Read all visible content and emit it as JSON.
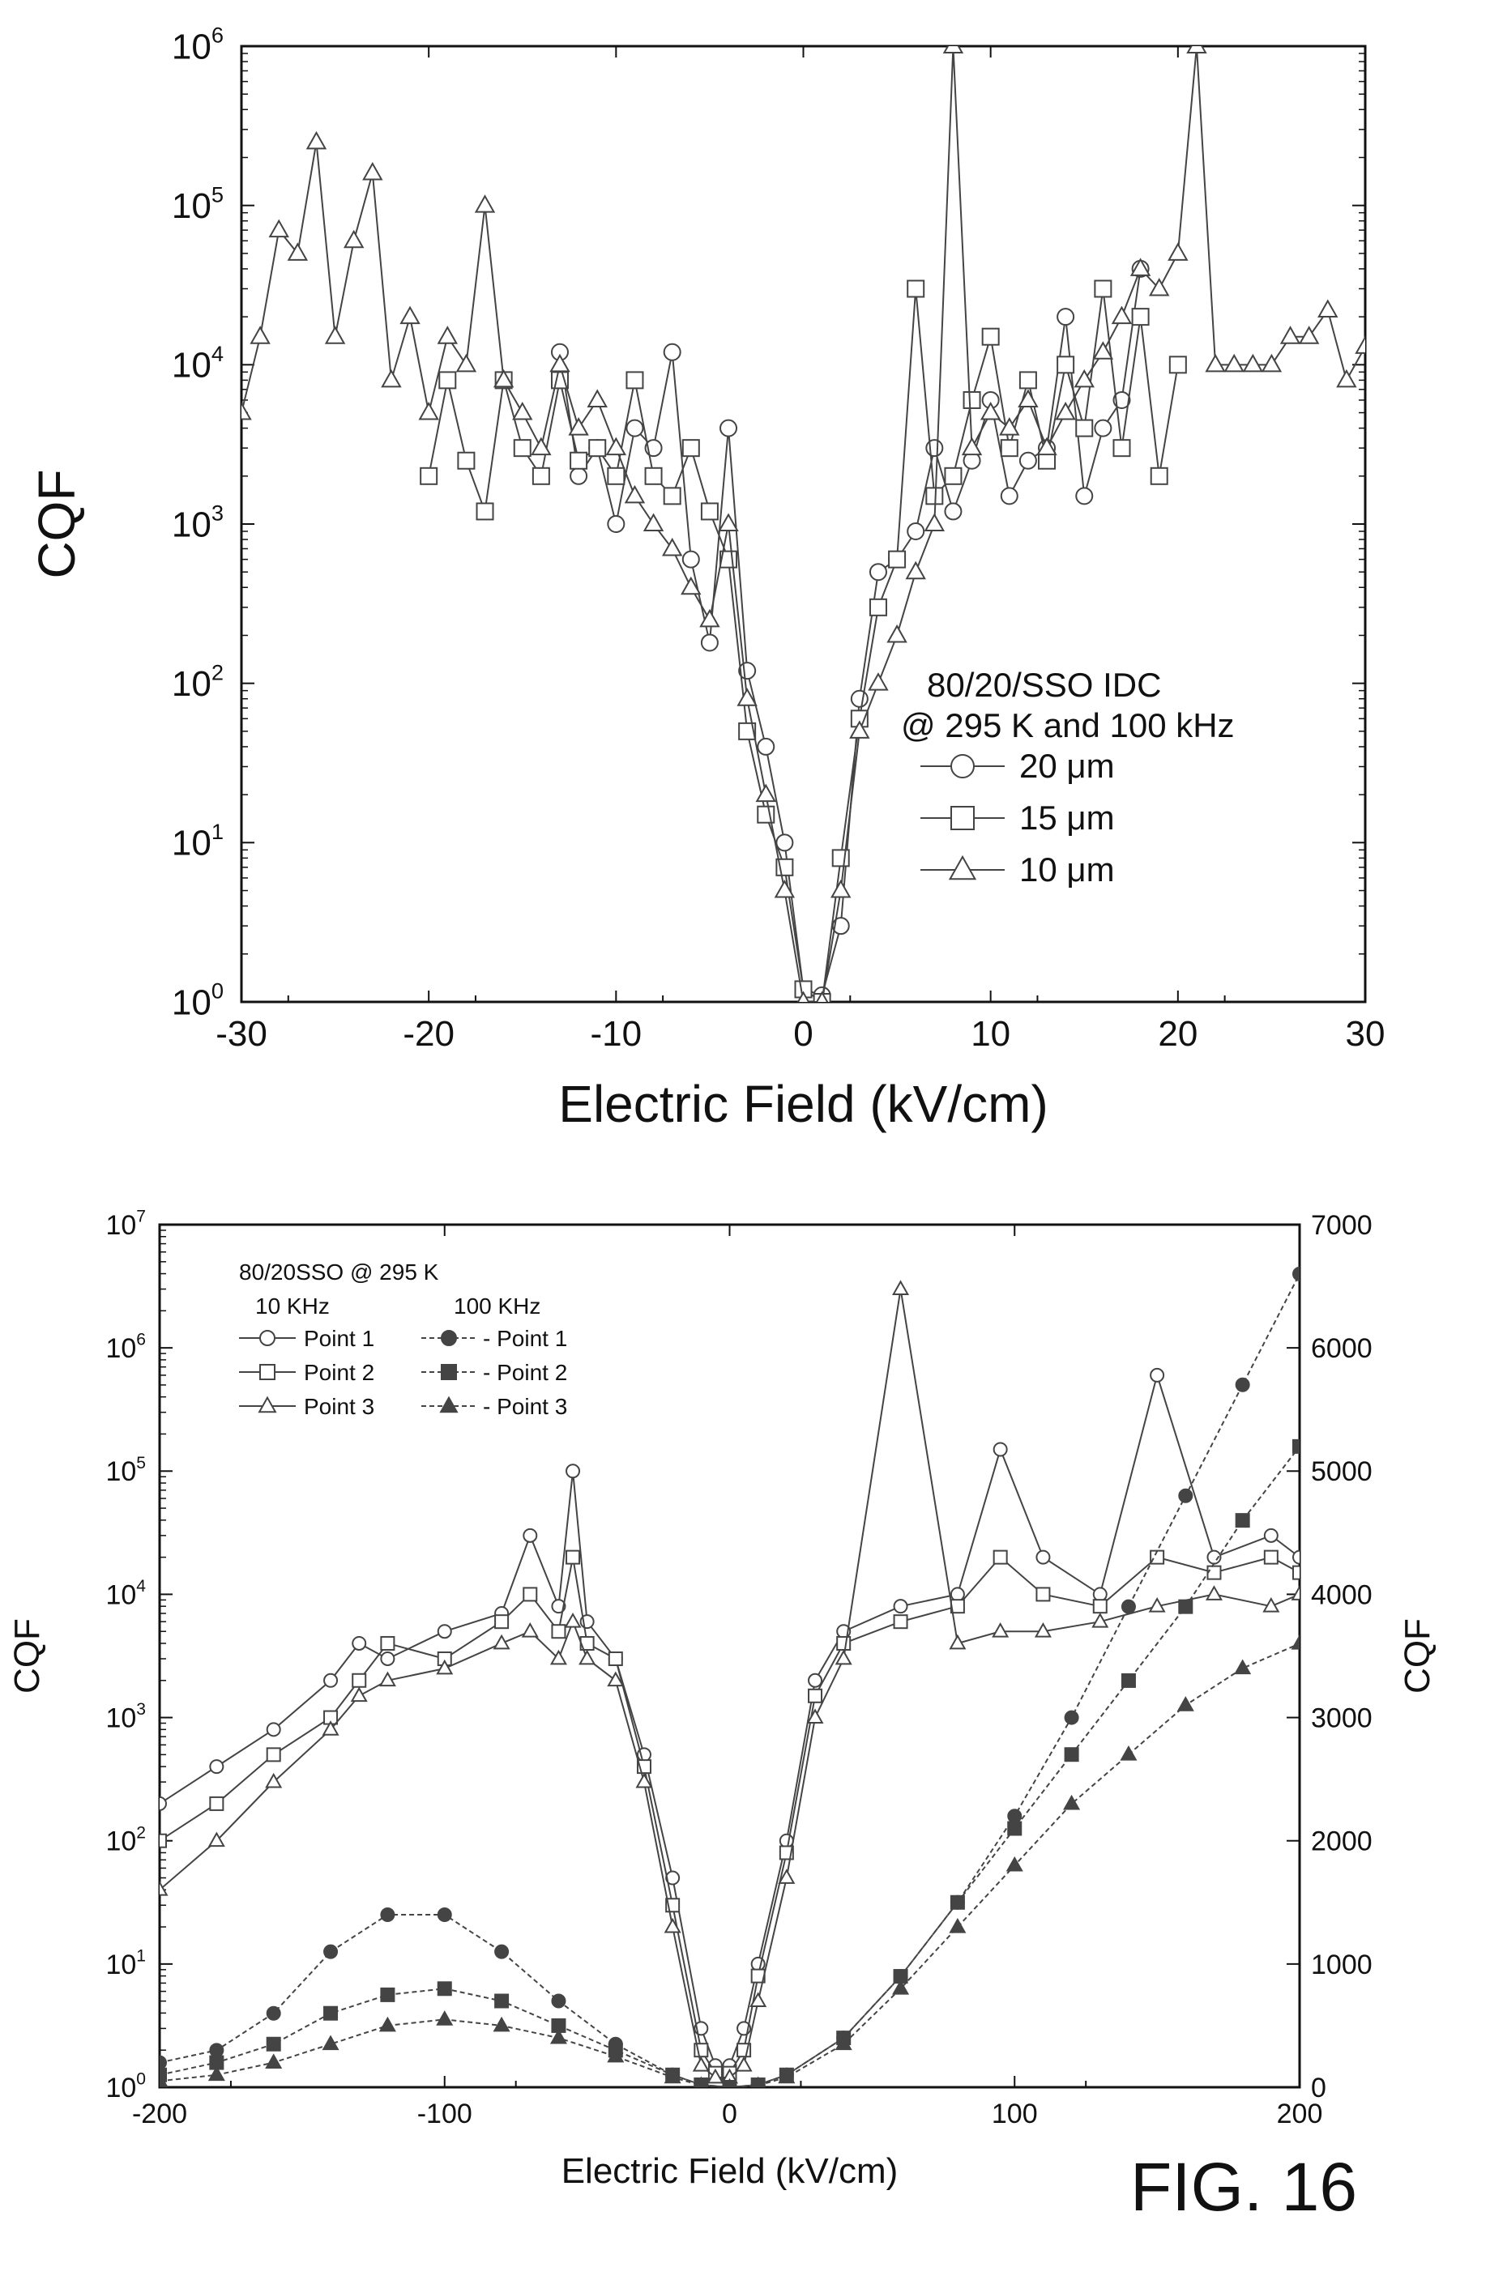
{
  "figure_label": "FIG. 16",
  "chart_data": [
    {
      "type": "line",
      "xlabel": "Electric Field (kV/cm)",
      "ylabel": "CQF",
      "xlim": [
        -30,
        30
      ],
      "ylim": [
        1,
        1000000
      ],
      "yscale": "log",
      "x_ticks": [
        "-30",
        "-20",
        "-10",
        "0",
        "10",
        "20",
        "30"
      ],
      "y_tick_exponents": [
        "0",
        "1",
        "2",
        "3",
        "4",
        "5",
        "6"
      ],
      "grid": false,
      "legend_position": "center-right",
      "legend_title": [
        "80/20/SSO IDC",
        "@ 295 K and 100 kHz"
      ],
      "series": [
        {
          "name": "20 μm",
          "marker": "circle",
          "x": [
            -13,
            -12,
            -11,
            -10,
            -9,
            -8,
            -7,
            -6,
            -5,
            -4,
            -3,
            -2,
            -1,
            0,
            1,
            2,
            3,
            4,
            5,
            6,
            7,
            8,
            9,
            10,
            11,
            12,
            13,
            14,
            15,
            16,
            17,
            18
          ],
          "y": [
            12000,
            2000,
            3000,
            1000,
            4000,
            3000,
            12000,
            600,
            180,
            4000,
            120,
            40,
            10,
            1.2,
            1.1,
            3,
            80,
            500,
            600,
            900,
            3000,
            1200,
            2500,
            6000,
            1500,
            2500,
            3000,
            20000,
            1500,
            4000,
            6000,
            40000
          ]
        },
        {
          "name": "15 μm",
          "marker": "square",
          "x": [
            -20,
            -19,
            -18,
            -17,
            -16,
            -15,
            -14,
            -13,
            -12,
            -11,
            -10,
            -9,
            -8,
            -7,
            -6,
            -5,
            -4,
            -3,
            -2,
            -1,
            0,
            1,
            2,
            3,
            4,
            5,
            6,
            7,
            8,
            9,
            10,
            11,
            12,
            13,
            14,
            15,
            16,
            17,
            18,
            19,
            20
          ],
          "y": [
            2000,
            8000,
            2500,
            1200,
            8000,
            3000,
            2000,
            8000,
            2500,
            3000,
            2000,
            8000,
            2000,
            1500,
            3000,
            1200,
            600,
            50,
            15,
            7,
            1.2,
            1,
            8,
            60,
            300,
            600,
            30000,
            1500,
            2000,
            6000,
            15000,
            3000,
            8000,
            2500,
            10000,
            4000,
            30000,
            3000,
            20000,
            2000,
            10000
          ]
        },
        {
          "name": "10 μm",
          "marker": "triangle",
          "x": [
            -30,
            -29,
            -28,
            -27,
            -26,
            -25,
            -24,
            -23,
            -22,
            -21,
            -20,
            -19,
            -18,
            -17,
            -16,
            -15,
            -14,
            -13,
            -12,
            -11,
            -10,
            -9,
            -8,
            -7,
            -6,
            -5,
            -4,
            -3,
            -2,
            -1,
            0,
            1,
            2,
            3,
            4,
            5,
            6,
            7,
            8,
            9,
            10,
            11,
            12,
            13,
            14,
            15,
            16,
            17,
            18,
            19,
            20,
            21,
            22,
            23,
            24,
            25,
            26,
            27,
            28,
            29,
            30
          ],
          "y": [
            5000,
            15000,
            70000,
            50000,
            250000,
            15000,
            60000,
            160000,
            8000,
            20000,
            5000,
            15000,
            10000,
            100000,
            8000,
            5000,
            3000,
            10000,
            4000,
            6000,
            3000,
            1500,
            1000,
            700,
            400,
            250,
            1000,
            80,
            20,
            5,
            1,
            1,
            5,
            50,
            100,
            200,
            500,
            1000,
            1000000,
            3000,
            5000,
            4000,
            6000,
            3000,
            5000,
            8000,
            12000,
            20000,
            40000,
            30000,
            50000,
            1000000,
            10000,
            10000,
            10000,
            10000,
            15000,
            15000,
            22000,
            8000,
            13000
          ]
        }
      ]
    },
    {
      "type": "line",
      "xlabel": "Electric Field (kV/cm)",
      "ylabel": "CQF",
      "y2label": "CQF",
      "xlim": [
        -200,
        200
      ],
      "ylim": [
        1,
        10000000
      ],
      "yscale": "log",
      "y2lim": [
        0,
        7000
      ],
      "x_ticks": [
        "-200",
        "-100",
        "0",
        "100",
        "200"
      ],
      "y_tick_exponents": [
        "0",
        "1",
        "2",
        "3",
        "4",
        "5",
        "6",
        "7"
      ],
      "y2_ticks": [
        "0",
        "1000",
        "2000",
        "3000",
        "4000",
        "5000",
        "6000",
        "7000"
      ],
      "grid": false,
      "legend_position": "top-left",
      "legend_title": "80/20SSO @ 295 K",
      "legend_columns": [
        "10 KHz",
        "100 KHz"
      ],
      "series": [
        {
          "name": "Point 1",
          "group": "10 KHz",
          "marker": "open-circle",
          "axis": "left",
          "x": [
            -200,
            -180,
            -160,
            -140,
            -130,
            -120,
            -100,
            -80,
            -70,
            -60,
            -55,
            -50,
            -40,
            -30,
            -20,
            -10,
            -5,
            0,
            5,
            10,
            20,
            30,
            40,
            60,
            80,
            95,
            110,
            130,
            150,
            170,
            190,
            200
          ],
          "y": [
            200,
            400,
            800,
            2000,
            4000,
            3000,
            5000,
            7000,
            30000,
            8000,
            100000,
            6000,
            3000,
            500,
            50,
            3,
            1.5,
            1.5,
            3,
            10,
            100,
            2000,
            5000,
            8000,
            10000,
            150000,
            20000,
            10000,
            600000,
            20000,
            30000,
            20000
          ]
        },
        {
          "name": "Point 2",
          "group": "10 KHz",
          "marker": "open-square",
          "axis": "left",
          "x": [
            -200,
            -180,
            -160,
            -140,
            -130,
            -120,
            -100,
            -80,
            -70,
            -60,
            -55,
            -50,
            -40,
            -30,
            -20,
            -10,
            -5,
            0,
            5,
            10,
            20,
            30,
            40,
            60,
            80,
            95,
            110,
            130,
            150,
            170,
            190,
            200
          ],
          "y": [
            100,
            200,
            500,
            1000,
            2000,
            4000,
            3000,
            6000,
            10000,
            5000,
            20000,
            4000,
            3000,
            400,
            30,
            2,
            1.3,
            1.3,
            2,
            8,
            80,
            1500,
            4000,
            6000,
            8000,
            20000,
            10000,
            8000,
            20000,
            15000,
            20000,
            15000
          ]
        },
        {
          "name": "Point 3",
          "group": "10 KHz",
          "marker": "open-triangle",
          "axis": "left",
          "x": [
            -200,
            -180,
            -160,
            -140,
            -130,
            -120,
            -100,
            -80,
            -70,
            -60,
            -55,
            -50,
            -40,
            -30,
            -20,
            -10,
            -5,
            0,
            5,
            10,
            20,
            30,
            40,
            60,
            80,
            95,
            110,
            130,
            150,
            170,
            190,
            200
          ],
          "y": [
            40,
            100,
            300,
            800,
            1500,
            2000,
            2500,
            4000,
            5000,
            3000,
            6000,
            3000,
            2000,
            300,
            20,
            1.5,
            1.2,
            1.2,
            1.5,
            5,
            50,
            1000,
            3000,
            3000000,
            4000,
            5000,
            5000,
            6000,
            8000,
            10000,
            8000,
            10000
          ]
        },
        {
          "name": "Point 1",
          "group": "100 KHz",
          "marker": "filled-circle",
          "axis": "right",
          "x": [
            -200,
            -180,
            -160,
            -140,
            -120,
            -100,
            -80,
            -60,
            -40,
            -20,
            -10,
            0,
            10,
            20,
            40,
            60,
            80,
            100,
            120,
            140,
            160,
            180,
            200
          ],
          "y": [
            200,
            300,
            600,
            1100,
            1400,
            1400,
            1100,
            700,
            350,
            100,
            20,
            0,
            20,
            100,
            400,
            900,
            1500,
            2200,
            3000,
            3900,
            4800,
            5700,
            6600
          ]
        },
        {
          "name": "Point 2",
          "group": "100 KHz",
          "marker": "filled-square",
          "axis": "right",
          "x": [
            -200,
            -180,
            -160,
            -140,
            -120,
            -100,
            -80,
            -60,
            -40,
            -20,
            -10,
            0,
            10,
            20,
            40,
            60,
            80,
            100,
            120,
            140,
            160,
            180,
            200
          ],
          "y": [
            100,
            200,
            350,
            600,
            750,
            800,
            700,
            500,
            300,
            100,
            20,
            0,
            20,
            100,
            400,
            900,
            1500,
            2100,
            2700,
            3300,
            3900,
            4600,
            5200
          ]
        },
        {
          "name": "Point 3",
          "group": "100 KHz",
          "marker": "filled-triangle",
          "axis": "right",
          "x": [
            -200,
            -180,
            -160,
            -140,
            -120,
            -100,
            -80,
            -60,
            -40,
            -20,
            -10,
            0,
            10,
            20,
            40,
            60,
            80,
            100,
            120,
            140,
            160,
            180,
            200
          ],
          "y": [
            50,
            100,
            200,
            350,
            500,
            550,
            500,
            400,
            250,
            80,
            15,
            0,
            15,
            80,
            350,
            800,
            1300,
            1800,
            2300,
            2700,
            3100,
            3400,
            3600
          ]
        }
      ]
    }
  ]
}
